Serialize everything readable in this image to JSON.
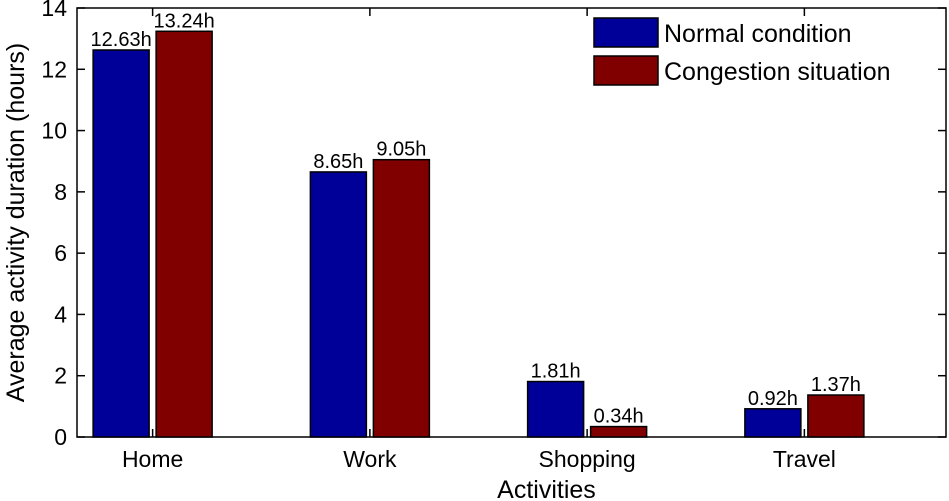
{
  "chart_data": {
    "type": "bar",
    "title": "",
    "xlabel": "Activities",
    "ylabel": "Average activity duration (hours)",
    "categories": [
      "Home",
      "Work",
      "Shopping",
      "Travel"
    ],
    "series": [
      {
        "name": "Normal condition",
        "color": "#000099",
        "values": [
          12.63,
          8.65,
          1.81,
          0.92
        ],
        "labels": [
          "12.63h",
          "8.65h",
          "1.81h",
          "0.92h"
        ]
      },
      {
        "name": "Congestion situation",
        "color": "#800000",
        "values": [
          13.24,
          9.05,
          0.34,
          1.37
        ],
        "labels": [
          "13.24h",
          "9.05h",
          "0.34h",
          "1.37h"
        ]
      }
    ],
    "ylim": [
      0,
      14
    ],
    "yticks": [
      0,
      2,
      4,
      6,
      8,
      10,
      12,
      14
    ],
    "grid": false,
    "legend_position": "top-right"
  }
}
